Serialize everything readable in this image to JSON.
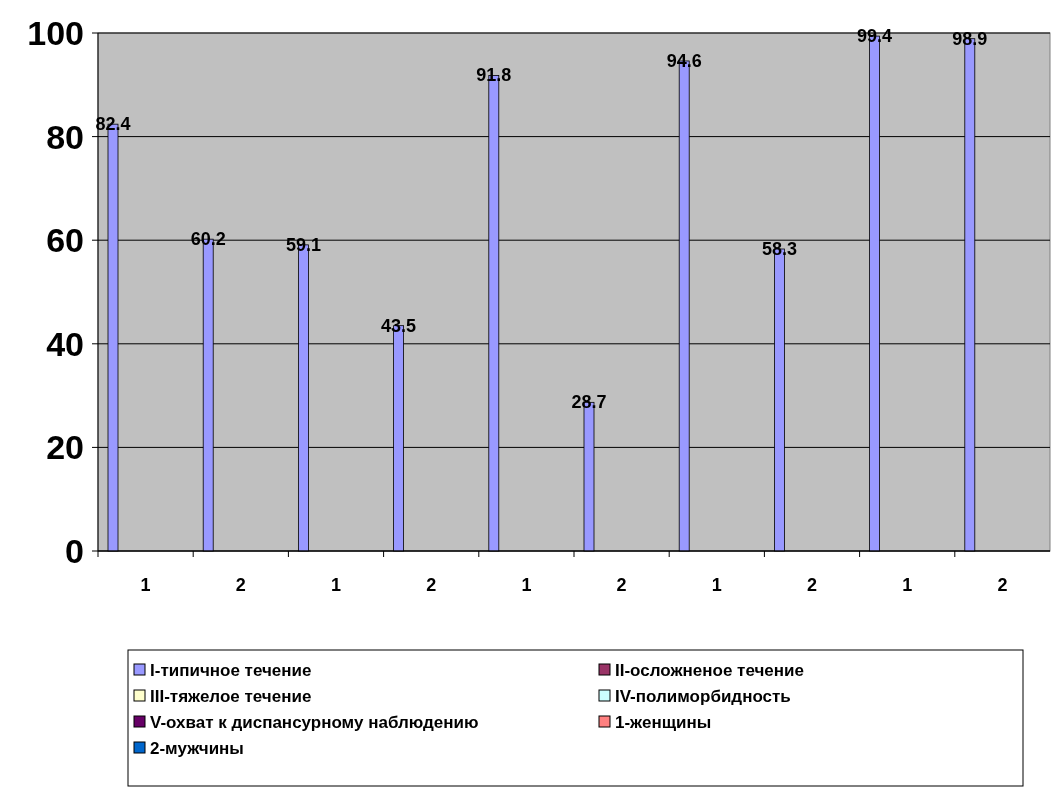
{
  "chart_data": {
    "type": "bar",
    "categories": [
      "1",
      "2",
      "1",
      "2",
      "1",
      "2",
      "1",
      "2",
      "1",
      "2"
    ],
    "series": [
      {
        "name": "I-типичное течение",
        "color": "#9999ff",
        "values": [
          82.4,
          60.2,
          59.1,
          43.5,
          91.8,
          28.7,
          94.6,
          58.3,
          99.4,
          98.9
        ]
      },
      {
        "name": "II-осложненое течение",
        "color": "#993366",
        "values": [
          null,
          null,
          null,
          null,
          null,
          null,
          null,
          null,
          null,
          null
        ]
      },
      {
        "name": "III-тяжелое течение",
        "color": "#ffffcc",
        "values": [
          null,
          null,
          null,
          null,
          null,
          null,
          null,
          null,
          null,
          null
        ]
      },
      {
        "name": "IV-полиморбидность",
        "color": "#ccffff",
        "values": [
          null,
          null,
          null,
          null,
          null,
          null,
          null,
          null,
          null,
          null
        ]
      },
      {
        "name": "V-охват к диспансурному наблюдению",
        "color": "#660066",
        "values": [
          null,
          null,
          null,
          null,
          null,
          null,
          null,
          null,
          null,
          null
        ]
      },
      {
        "name": "1-женщины",
        "color": "#ff8080",
        "values": [
          null,
          null,
          null,
          null,
          null,
          null,
          null,
          null,
          null,
          null
        ]
      },
      {
        "name": "2-мужчины",
        "color": "#0066cc",
        "values": [
          null,
          null,
          null,
          null,
          null,
          null,
          null,
          null,
          null,
          null
        ]
      }
    ],
    "ylim": [
      0,
      100
    ],
    "yticks": [
      0,
      20,
      40,
      60,
      80,
      100
    ],
    "grid": "y",
    "data_labels": true,
    "legend": "bottom"
  }
}
